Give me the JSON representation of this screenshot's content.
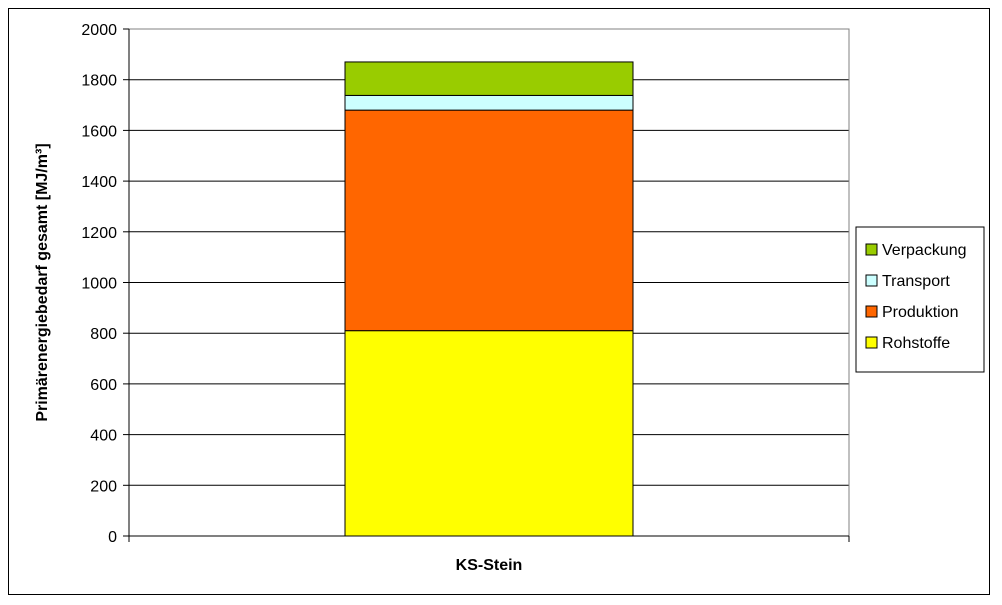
{
  "chart_data": {
    "type": "bar",
    "stacked": true,
    "categories": [
      "KS-Stein"
    ],
    "series": [
      {
        "name": "Rohstoffe",
        "values": [
          810
        ],
        "color": "#ffff00"
      },
      {
        "name": "Produktion",
        "values": [
          870
        ],
        "color": "#ff6600"
      },
      {
        "name": "Transport",
        "values": [
          58
        ],
        "color": "#ccffff"
      },
      {
        "name": "Verpackung",
        "values": [
          132
        ],
        "color": "#99cc00"
      }
    ],
    "legend_order": [
      "Verpackung",
      "Transport",
      "Produktion",
      "Rohstoffe"
    ],
    "ylabel": "Primärenergiebedarf gesamt [MJ/m³]",
    "xlabel": "",
    "ylim": [
      0,
      2000
    ],
    "yticks": [
      0,
      200,
      400,
      600,
      800,
      1000,
      1200,
      1400,
      1600,
      1800,
      2000
    ],
    "grid": true,
    "legend_position": "right"
  }
}
